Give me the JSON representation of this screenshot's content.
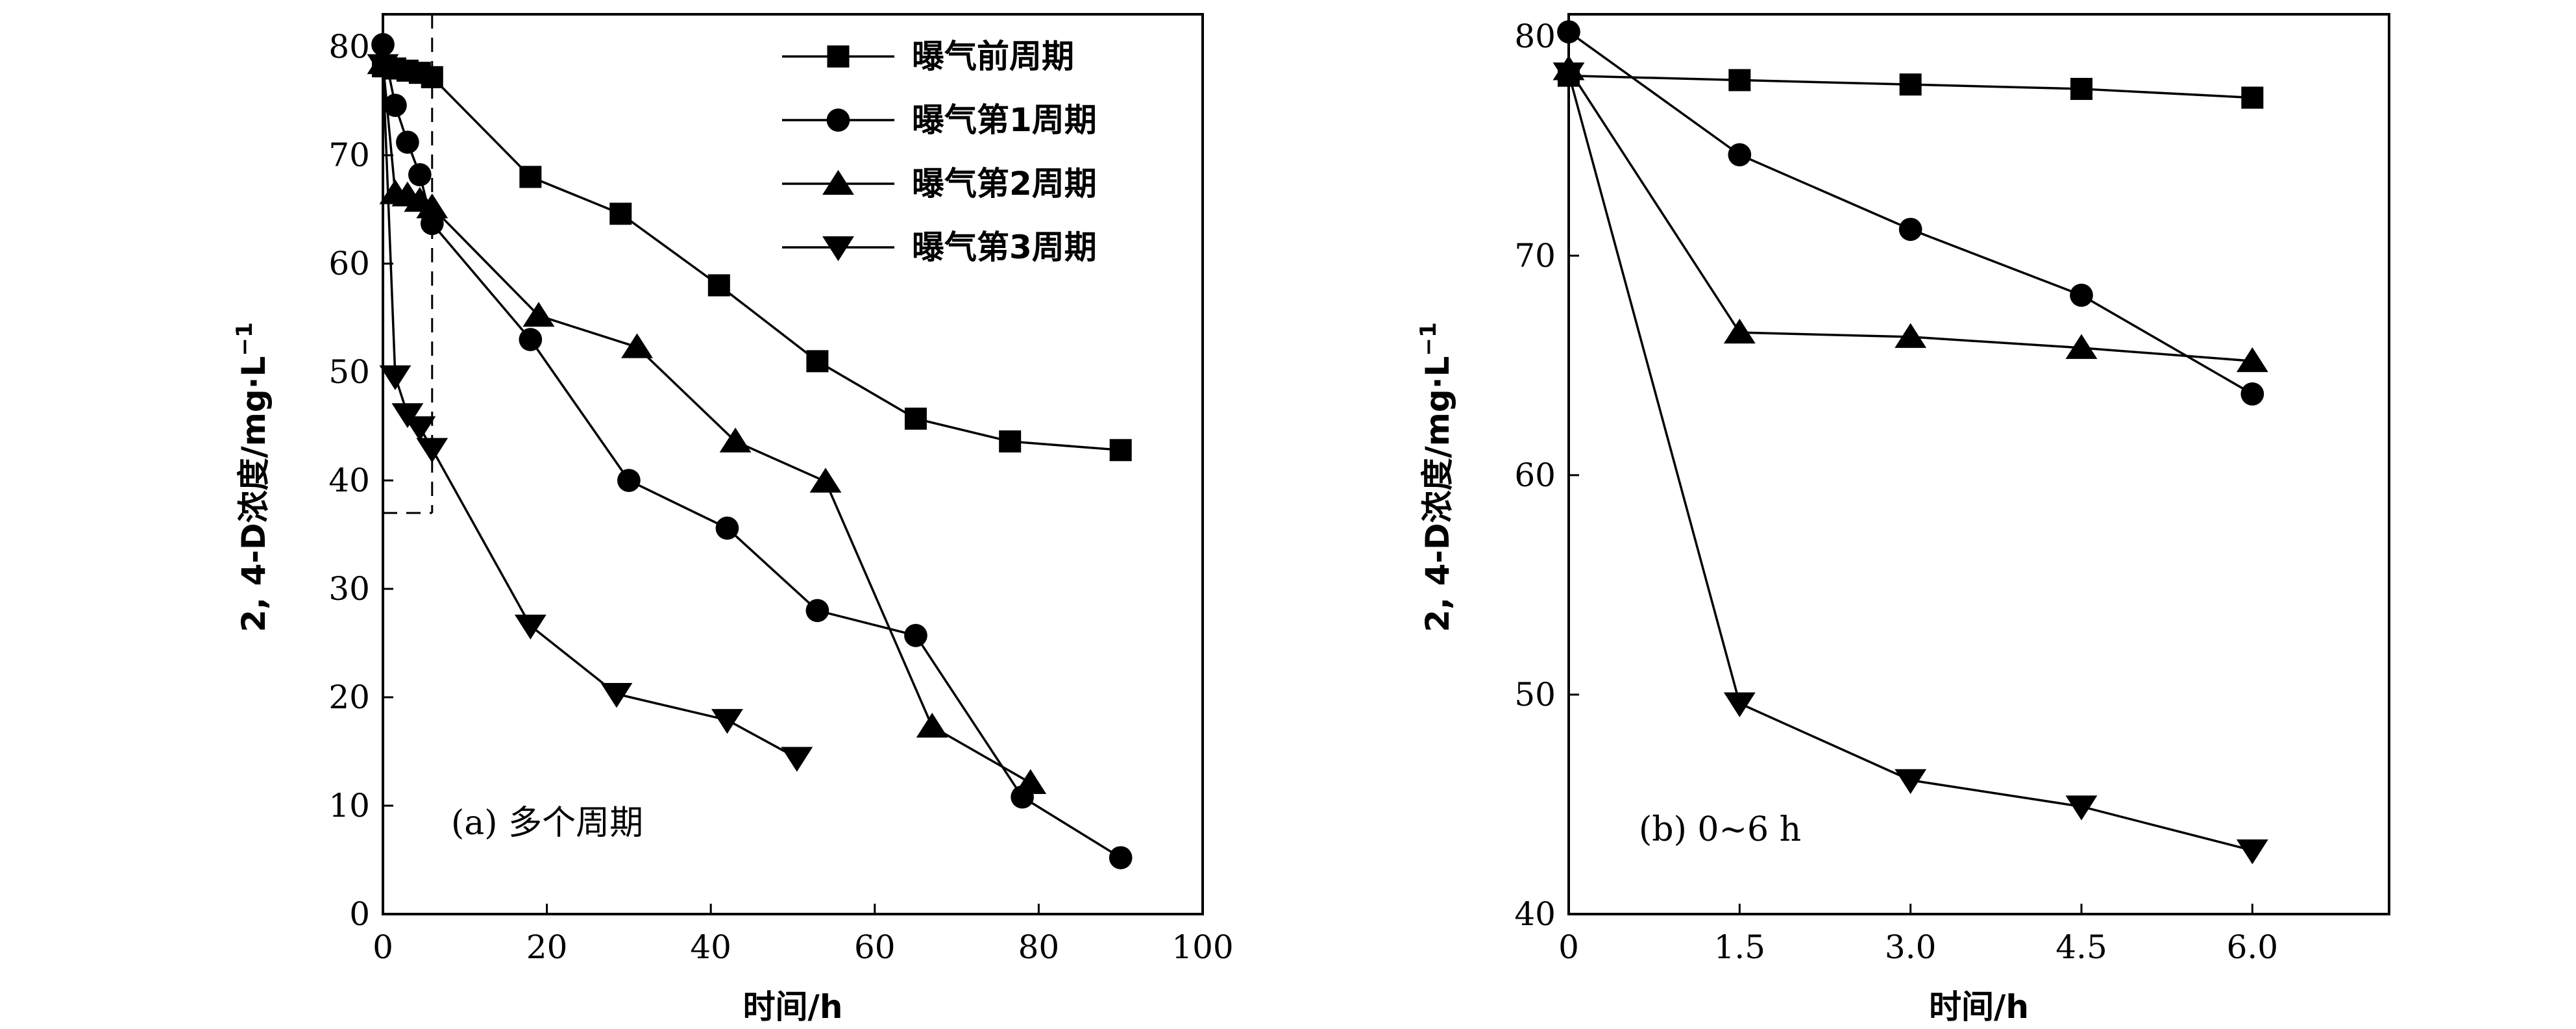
{
  "chart_data": [
    {
      "type": "line",
      "panel": "a",
      "annotation": "(a) 多个周期",
      "xlabel": "时间/h",
      "ylabel": "2, 4-D浓度/mg·L",
      "ylabel_sup": "−1",
      "xlim": [
        0,
        100
      ],
      "ylim": [
        0,
        83
      ],
      "xticks": [
        0,
        20,
        40,
        60,
        80,
        100
      ],
      "yticks": [
        0,
        10,
        20,
        30,
        40,
        50,
        60,
        70,
        80
      ],
      "xtick_labels": [
        "0",
        "20",
        "40",
        "60",
        "80",
        "100"
      ],
      "ytick_labels": [
        "0",
        "10",
        "20",
        "30",
        "40",
        "50",
        "60",
        "70",
        "80"
      ],
      "legend_position": "top-right",
      "highlight_box": {
        "x_range": [
          0,
          6
        ],
        "y_range": [
          37,
          83
        ]
      },
      "series": [
        {
          "name": "曝气前周期",
          "marker": "square",
          "x": [
            0,
            1.5,
            3,
            4.5,
            6,
            18,
            29,
            41,
            53,
            65,
            76.5,
            90
          ],
          "y": [
            78.2,
            78,
            77.8,
            77.6,
            77.2,
            68,
            64.6,
            58,
            51,
            45.7,
            43.6,
            42.8
          ]
        },
        {
          "name": "曝气第1周期",
          "marker": "circle",
          "x": [
            0,
            1.5,
            3,
            4.5,
            6,
            18,
            30,
            42,
            53,
            65,
            78,
            90
          ],
          "y": [
            80.2,
            74.6,
            71.2,
            68.2,
            63.7,
            53,
            40,
            35.6,
            28,
            25.7,
            10.8,
            5.2
          ]
        },
        {
          "name": "曝气第2周期",
          "marker": "triangle-up",
          "x": [
            0,
            1.5,
            3,
            4.5,
            6,
            19,
            31,
            43,
            54,
            67,
            79
          ],
          "y": [
            78.5,
            66.5,
            66.3,
            65.8,
            65.2,
            55.2,
            52.3,
            43.6,
            39.9,
            17.3,
            12.1
          ]
        },
        {
          "name": "曝气第3周期",
          "marker": "triangle-down",
          "x": [
            0,
            1.5,
            3,
            4.5,
            6,
            18,
            28.5,
            42,
            50.5
          ],
          "y": [
            78.3,
            49.6,
            46.1,
            44.9,
            42.9,
            26.6,
            20.3,
            17.9,
            14.4
          ]
        }
      ]
    },
    {
      "type": "line",
      "panel": "b",
      "annotation": "(b) 0~6 h",
      "xlabel": "时间/h",
      "ylabel": "2, 4-D浓度/mg·L",
      "ylabel_sup": "−1",
      "xlim": [
        0,
        7.2
      ],
      "ylim": [
        40,
        81
      ],
      "xticks": [
        0,
        1.5,
        3,
        4.5,
        6
      ],
      "yticks": [
        40,
        50,
        60,
        70,
        80
      ],
      "xtick_labels": [
        "0",
        "1.5",
        "3.0",
        "4.5",
        "6.0"
      ],
      "ytick_labels": [
        "40",
        "50",
        "60",
        "70",
        "80"
      ],
      "series": [
        {
          "name": "曝气前周期",
          "marker": "square",
          "x": [
            0,
            1.5,
            3,
            4.5,
            6
          ],
          "y": [
            78.2,
            78,
            77.8,
            77.6,
            77.2
          ]
        },
        {
          "name": "曝气第1周期",
          "marker": "circle",
          "x": [
            0,
            1.5,
            3,
            4.5,
            6
          ],
          "y": [
            80.2,
            74.6,
            71.2,
            68.2,
            63.7
          ]
        },
        {
          "name": "曝气第2周期",
          "marker": "triangle-up",
          "x": [
            0,
            1.5,
            3,
            4.5,
            6
          ],
          "y": [
            78.5,
            66.5,
            66.3,
            65.8,
            65.2
          ]
        },
        {
          "name": "曝气第3周期",
          "marker": "triangle-down",
          "x": [
            0,
            1.5,
            3,
            4.5,
            6
          ],
          "y": [
            78.3,
            49.6,
            46.1,
            44.9,
            42.9
          ]
        }
      ]
    }
  ]
}
